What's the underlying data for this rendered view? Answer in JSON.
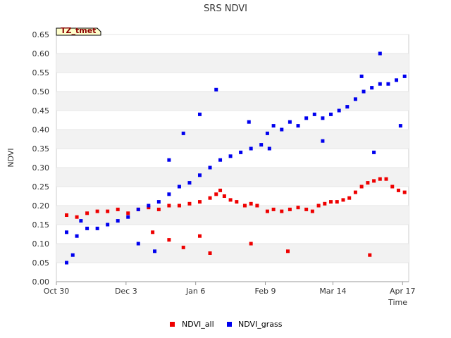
{
  "chart_data": {
    "type": "scatter",
    "title": "SRS NDVI",
    "xlabel": "Time",
    "ylabel": "NDVI",
    "badge": "TZ_tmet",
    "ylim": [
      0.0,
      0.65
    ],
    "yticks": [
      "0.00",
      "0.05",
      "0.10",
      "0.15",
      "0.20",
      "0.25",
      "0.30",
      "0.35",
      "0.40",
      "0.45",
      "0.50",
      "0.55",
      "0.60",
      "0.65"
    ],
    "xlim_days": [
      0,
      172
    ],
    "xticks": [
      {
        "label": "Oct 30",
        "day": 0
      },
      {
        "label": "Dec 3",
        "day": 34
      },
      {
        "label": "Jan 6",
        "day": 68
      },
      {
        "label": "Feb 9",
        "day": 102
      },
      {
        "label": "Mar 14",
        "day": 135
      },
      {
        "label": "Apr 17",
        "day": 169
      }
    ],
    "series": [
      {
        "name": "NDVI_all",
        "color": "#ee0000",
        "points": [
          [
            5,
            0.175
          ],
          [
            10,
            0.17
          ],
          [
            15,
            0.18
          ],
          [
            20,
            0.185
          ],
          [
            25,
            0.185
          ],
          [
            30,
            0.19
          ],
          [
            35,
            0.18
          ],
          [
            40,
            0.19
          ],
          [
            45,
            0.195
          ],
          [
            50,
            0.19
          ],
          [
            55,
            0.2
          ],
          [
            60,
            0.2
          ],
          [
            65,
            0.205
          ],
          [
            70,
            0.21
          ],
          [
            75,
            0.22
          ],
          [
            78,
            0.23
          ],
          [
            80,
            0.24
          ],
          [
            82,
            0.225
          ],
          [
            85,
            0.215
          ],
          [
            88,
            0.21
          ],
          [
            92,
            0.2
          ],
          [
            95,
            0.205
          ],
          [
            98,
            0.2
          ],
          [
            103,
            0.185
          ],
          [
            106,
            0.19
          ],
          [
            110,
            0.185
          ],
          [
            114,
            0.19
          ],
          [
            118,
            0.195
          ],
          [
            122,
            0.19
          ],
          [
            125,
            0.185
          ],
          [
            128,
            0.2
          ],
          [
            131,
            0.205
          ],
          [
            134,
            0.21
          ],
          [
            137,
            0.21
          ],
          [
            140,
            0.215
          ],
          [
            143,
            0.22
          ],
          [
            146,
            0.235
          ],
          [
            149,
            0.25
          ],
          [
            152,
            0.26
          ],
          [
            155,
            0.265
          ],
          [
            158,
            0.27
          ],
          [
            161,
            0.27
          ],
          [
            164,
            0.25
          ],
          [
            167,
            0.24
          ],
          [
            170,
            0.235
          ],
          [
            47,
            0.13
          ],
          [
            55,
            0.11
          ],
          [
            62,
            0.09
          ],
          [
            70,
            0.12
          ],
          [
            75,
            0.075
          ],
          [
            95,
            0.1
          ],
          [
            113,
            0.08
          ],
          [
            153,
            0.07
          ]
        ]
      },
      {
        "name": "NDVI_grass",
        "color": "#0000ee",
        "points": [
          [
            5,
            0.13
          ],
          [
            10,
            0.12
          ],
          [
            15,
            0.14
          ],
          [
            20,
            0.14
          ],
          [
            25,
            0.15
          ],
          [
            30,
            0.16
          ],
          [
            35,
            0.17
          ],
          [
            40,
            0.19
          ],
          [
            45,
            0.2
          ],
          [
            50,
            0.21
          ],
          [
            55,
            0.23
          ],
          [
            60,
            0.25
          ],
          [
            65,
            0.26
          ],
          [
            70,
            0.28
          ],
          [
            75,
            0.3
          ],
          [
            80,
            0.32
          ],
          [
            85,
            0.33
          ],
          [
            90,
            0.34
          ],
          [
            95,
            0.35
          ],
          [
            100,
            0.36
          ],
          [
            103,
            0.39
          ],
          [
            106,
            0.41
          ],
          [
            110,
            0.4
          ],
          [
            114,
            0.42
          ],
          [
            118,
            0.41
          ],
          [
            122,
            0.43
          ],
          [
            126,
            0.44
          ],
          [
            130,
            0.43
          ],
          [
            134,
            0.44
          ],
          [
            138,
            0.45
          ],
          [
            142,
            0.46
          ],
          [
            146,
            0.48
          ],
          [
            150,
            0.5
          ],
          [
            154,
            0.51
          ],
          [
            158,
            0.52
          ],
          [
            162,
            0.52
          ],
          [
            166,
            0.53
          ],
          [
            170,
            0.54
          ],
          [
            5,
            0.05
          ],
          [
            8,
            0.07
          ],
          [
            12,
            0.16
          ],
          [
            40,
            0.1
          ],
          [
            48,
            0.08
          ],
          [
            55,
            0.32
          ],
          [
            62,
            0.39
          ],
          [
            70,
            0.44
          ],
          [
            78,
            0.505
          ],
          [
            94,
            0.42
          ],
          [
            104,
            0.35
          ],
          [
            130,
            0.37
          ],
          [
            149,
            0.54
          ],
          [
            155,
            0.34
          ],
          [
            158,
            0.6
          ],
          [
            168,
            0.41
          ]
        ]
      }
    ]
  }
}
